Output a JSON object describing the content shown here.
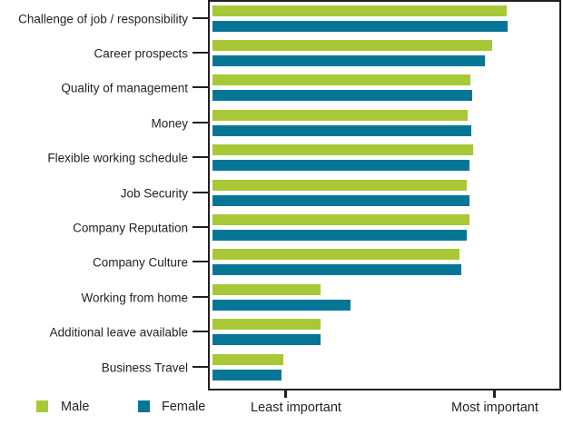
{
  "chart_data": {
    "type": "bar",
    "orientation": "horizontal",
    "title": "",
    "categories": [
      "Challenge of job / responsibility",
      "Career prospects",
      "Quality of management",
      "Money",
      "Flexible working schedule",
      "Job Security",
      "Company Reputation",
      "Company Culture",
      "Working from home",
      "Additional leave available",
      "Business Travel"
    ],
    "series": [
      {
        "name": "Male",
        "color": "#a9c837",
        "values_pct_of_axis": [
          84.6,
          80.4,
          74.2,
          73.4,
          74.9,
          73.1,
          73.9,
          71.0,
          31.1,
          31.1,
          20.4
        ]
      },
      {
        "name": "Female",
        "color": "#077696",
        "values_pct_of_axis": [
          84.9,
          78.3,
          74.7,
          74.4,
          73.9,
          73.9,
          73.1,
          71.5,
          39.7,
          31.1,
          19.8
        ]
      }
    ],
    "xaxis": {
      "min_pct": 0,
      "max_pct": 100,
      "ticks": [
        {
          "label": "Least important",
          "pos_pct": 21.1
        },
        {
          "label": "Most important",
          "pos_pct": 81.2
        }
      ]
    },
    "legend": {
      "position": "bottom-left",
      "entries": [
        {
          "label": "Male",
          "color": "#a9c837"
        },
        {
          "label": "Female",
          "color": "#077696"
        }
      ]
    },
    "grid": false,
    "frame_color": "#231f20",
    "background_color": "#ffffff"
  }
}
